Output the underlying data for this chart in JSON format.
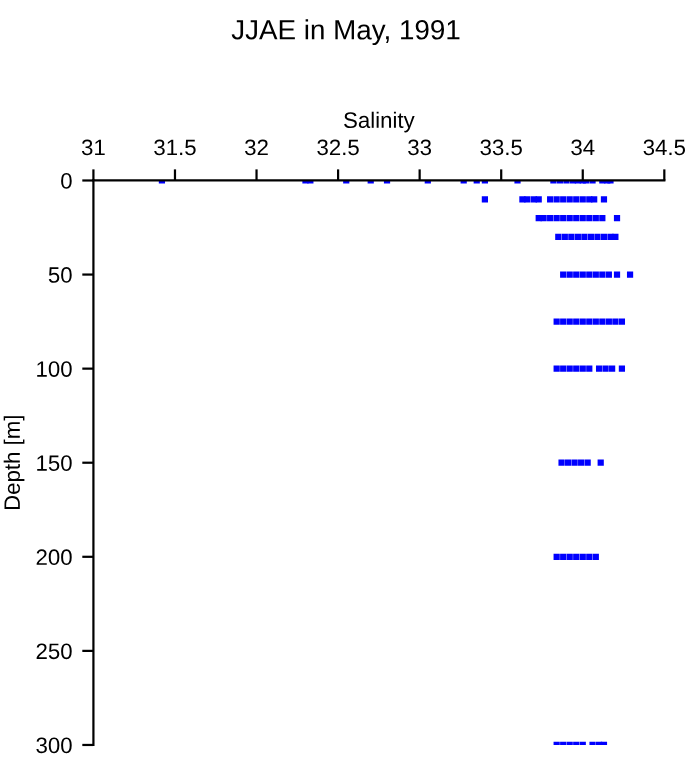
{
  "chart_data": {
    "type": "scatter",
    "title": "JJAE in May, 1991",
    "xlabel": "Salinity",
    "ylabel": "Depth [m]",
    "xlim": [
      31,
      34.5
    ],
    "xticks": [
      31,
      31.5,
      32,
      32.5,
      33,
      33.5,
      34,
      34.5
    ],
    "ylim": [
      300,
      0
    ],
    "yticks": [
      0,
      50,
      100,
      150,
      200,
      250,
      300
    ],
    "marker": "square",
    "grid": false,
    "series": [
      {
        "color": "#0000ff",
        "x": [
          31.42,
          32.3,
          32.33,
          32.55,
          32.7,
          32.8,
          33.05,
          33.27,
          33.35,
          33.4,
          33.6,
          33.82,
          33.86,
          33.9,
          33.94,
          33.97,
          34.0,
          34.02,
          34.06,
          34.12,
          34.15,
          34.17
        ],
        "values": [
          0,
          0,
          0,
          0,
          0,
          0,
          0,
          0,
          0,
          0,
          0,
          0,
          0,
          0,
          0,
          0,
          0,
          0,
          0,
          0,
          0,
          0
        ]
      },
      {
        "color": "#0000ff",
        "x": [
          33.4,
          33.63,
          33.66,
          33.7,
          33.73,
          33.8,
          33.84,
          33.88,
          33.92,
          33.96,
          34.0,
          34.04,
          34.07,
          34.13
        ],
        "values": [
          10,
          10,
          10,
          10,
          10,
          10,
          10,
          10,
          10,
          10,
          10,
          10,
          10,
          10
        ]
      },
      {
        "color": "#0000ff",
        "x": [
          33.73,
          33.76,
          33.8,
          33.84,
          33.88,
          33.92,
          33.96,
          34.0,
          34.04,
          34.08,
          34.12,
          34.21
        ],
        "values": [
          20,
          20,
          20,
          20,
          20,
          20,
          20,
          20,
          20,
          20,
          20,
          20
        ]
      },
      {
        "color": "#0000ff",
        "x": [
          33.85,
          33.89,
          33.93,
          33.97,
          34.01,
          34.05,
          34.09,
          34.13,
          34.17,
          34.2
        ],
        "values": [
          30,
          30,
          30,
          30,
          30,
          30,
          30,
          30,
          30,
          30
        ]
      },
      {
        "color": "#0000ff",
        "x": [
          33.88,
          33.92,
          33.96,
          34.0,
          34.04,
          34.08,
          34.12,
          34.16,
          34.21,
          34.29
        ],
        "values": [
          50,
          50,
          50,
          50,
          50,
          50,
          50,
          50,
          50,
          50
        ]
      },
      {
        "color": "#0000ff",
        "x": [
          33.84,
          33.88,
          33.92,
          33.96,
          34.0,
          34.04,
          34.08,
          34.12,
          34.16,
          34.2,
          34.24
        ],
        "values": [
          75,
          75,
          75,
          75,
          75,
          75,
          75,
          75,
          75,
          75,
          75
        ]
      },
      {
        "color": "#0000ff",
        "x": [
          33.84,
          33.88,
          33.92,
          33.96,
          34.0,
          34.04,
          34.1,
          34.14,
          34.18,
          34.24
        ],
        "values": [
          100,
          100,
          100,
          100,
          100,
          100,
          100,
          100,
          100,
          100
        ]
      },
      {
        "color": "#0000ff",
        "x": [
          33.87,
          33.91,
          33.95,
          33.99,
          34.03,
          34.11
        ],
        "values": [
          150,
          150,
          150,
          150,
          150,
          150
        ]
      },
      {
        "color": "#0000ff",
        "x": [
          33.84,
          33.88,
          33.92,
          33.96,
          34.0,
          34.04,
          34.08
        ],
        "values": [
          200,
          200,
          200,
          200,
          200,
          200,
          200
        ]
      },
      {
        "color": "#0000ff",
        "x": [
          33.84,
          33.88,
          33.92,
          33.96,
          34.0,
          34.06,
          34.1,
          34.13
        ],
        "values": [
          300,
          300,
          300,
          300,
          300,
          300,
          300,
          300
        ]
      }
    ]
  }
}
